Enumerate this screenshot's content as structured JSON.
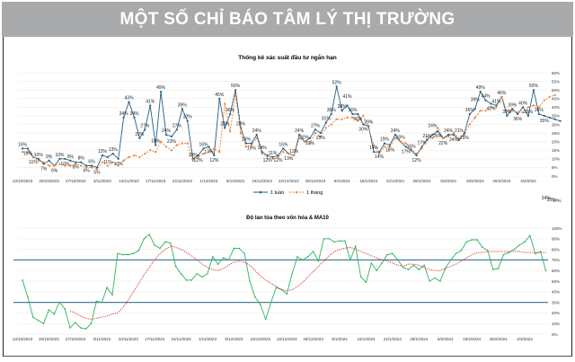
{
  "header": {
    "title": "MỘT SỐ CHỈ BÁO TÂM LÝ THỊ TRƯỜNG"
  },
  "chart_data": [
    {
      "type": "line",
      "title": "Thống kê xác suất đầu tư ngắn hạn",
      "x_tick_labels": [
        "13/10/2023",
        "20/10/2023",
        "27/10/2023",
        "3/11/2023",
        "10/11/2023",
        "17/11/2023",
        "24/11/2023",
        "1/12/2023",
        "8/12/2023",
        "15/12/2023",
        "22/12/2023",
        "29/12/2023",
        "8/1/2024",
        "15/1/2024",
        "22/1/2024",
        "29/1/2024",
        "5/2/2024",
        "19/2/2024",
        "26/2/2024",
        "4/3/2024"
      ],
      "y_tick_labels": [
        "0%",
        "5%",
        "10%",
        "15%",
        "20%",
        "25%",
        "30%",
        "35%",
        "40%",
        "45%",
        "50%",
        "55%",
        "60%"
      ],
      "ylim": [
        0,
        60
      ],
      "legend_position": "bottom",
      "series": [
        {
          "name": "1 tuần",
          "color": "#1f5f86",
          "style": "solid-markers",
          "data_labels": true,
          "values": [
            16,
            16,
            11,
            10,
            7,
            9,
            6,
            10,
            10,
            9,
            8,
            8,
            6,
            6,
            5,
            12,
            11,
            13,
            10,
            34,
            43,
            34,
            22,
            27,
            41,
            18,
            49,
            24,
            23,
            27,
            39,
            32,
            10,
            12,
            16,
            17,
            12,
            45,
            28,
            36,
            50,
            28,
            19,
            19,
            24,
            14,
            12,
            11,
            12,
            16,
            13,
            12,
            24,
            20,
            22,
            27,
            25,
            31,
            36,
            52,
            38,
            41,
            36,
            36,
            30,
            29,
            14,
            14,
            19,
            18,
            24,
            20,
            17,
            15,
            12,
            17,
            21,
            24,
            26,
            22,
            24,
            24,
            21,
            25,
            36,
            39,
            49,
            44,
            42,
            41,
            46,
            35,
            39,
            36,
            40,
            35,
            50,
            36,
            35,
            34,
            33,
            32
          ]
        },
        {
          "name": "1 tháng",
          "color": "#ed7d31",
          "style": "dashed-markers",
          "values": [
            14,
            14,
            11,
            9,
            8,
            6,
            6,
            7,
            6,
            6,
            7,
            6,
            5,
            5,
            4,
            8,
            6,
            8,
            6,
            9,
            11,
            12,
            11,
            13,
            15,
            14,
            20,
            17,
            15,
            18,
            19,
            19,
            9,
            11,
            13,
            14,
            16,
            14,
            42,
            26,
            47,
            25,
            17,
            18,
            22,
            13,
            11,
            10,
            11,
            14,
            13,
            12,
            22,
            20,
            19,
            25,
            23,
            28,
            30,
            33,
            33,
            34,
            34,
            32,
            35,
            28,
            18,
            13,
            17,
            17,
            22,
            20,
            19,
            16,
            13,
            16,
            23,
            22,
            28,
            22,
            23,
            25,
            22,
            24,
            30,
            34,
            38,
            38,
            40,
            40,
            46,
            38,
            38,
            37,
            37,
            40,
            41,
            40,
            44,
            46,
            47
          ]
        }
      ]
    },
    {
      "type": "line",
      "title": "Độ lan tỏa theo vốn hóa & MA10",
      "x_tick_labels": [
        "13/10/2023",
        "20/10/2023",
        "27/10/2023",
        "3/11/2023",
        "10/11/2023",
        "17/11/2023",
        "24/11/2023",
        "1/12/2023",
        "8/12/2023",
        "15/12/2023",
        "22/12/2023",
        "29/12/2023",
        "8/1/2024",
        "15/1/2024",
        "22/1/2024",
        "29/1/2024",
        "5/2/2024",
        "19/2/2024",
        "26/2/2024",
        "4/3/2024"
      ],
      "y_tick_labels": [
        "0%",
        "10%",
        "20%",
        "30%",
        "40%",
        "50%",
        "60%",
        "70%",
        "80%",
        "90%",
        "100%"
      ],
      "ylim": [
        0,
        100
      ],
      "reference_lines": [
        30,
        70
      ],
      "reference_color": "#4a7f9a",
      "series": [
        {
          "color": "#2fb35a",
          "style": "solid",
          "values": [
            51,
            35,
            16,
            13,
            10,
            23,
            19,
            30,
            24,
            6,
            11,
            6,
            5,
            10,
            31,
            30,
            44,
            37,
            76,
            75,
            75,
            76,
            79,
            90,
            94,
            84,
            81,
            87,
            86,
            64,
            57,
            51,
            51,
            57,
            54,
            57,
            73,
            66,
            72,
            70,
            81,
            81,
            76,
            50,
            35,
            28,
            14,
            30,
            44,
            42,
            38,
            57,
            73,
            70,
            73,
            78,
            69,
            90,
            90,
            87,
            88,
            88,
            70,
            83,
            54,
            49,
            67,
            60,
            67,
            75,
            76,
            70,
            63,
            61,
            65,
            61,
            65,
            50,
            53,
            50,
            62,
            70,
            76,
            79,
            87,
            89,
            89,
            82,
            79,
            61,
            62,
            75,
            77,
            80,
            84,
            87,
            93,
            76,
            78,
            60
          ]
        },
        {
          "color": "#e03030",
          "style": "dotted",
          "start_index": 9,
          "values": [
            22,
            20,
            17,
            15,
            14,
            15,
            16,
            17,
            19,
            20,
            25,
            32,
            40,
            48,
            56,
            63,
            70,
            76,
            80,
            83,
            82,
            80,
            77,
            74,
            70,
            66,
            63,
            61,
            60,
            62,
            65,
            68,
            69,
            68,
            65,
            60,
            55,
            51,
            48,
            45,
            42,
            41,
            42,
            45,
            49,
            54,
            59,
            64,
            69,
            74,
            78,
            80,
            81,
            82,
            80,
            78,
            76,
            74,
            72,
            70,
            69,
            67,
            65,
            64,
            66,
            66,
            65,
            63,
            61,
            60,
            60,
            62,
            64,
            66,
            69,
            72,
            75,
            77,
            77,
            78,
            78,
            78,
            78,
            78,
            78,
            78,
            77,
            77,
            77,
            77,
            77
          ]
        }
      ]
    }
  ]
}
